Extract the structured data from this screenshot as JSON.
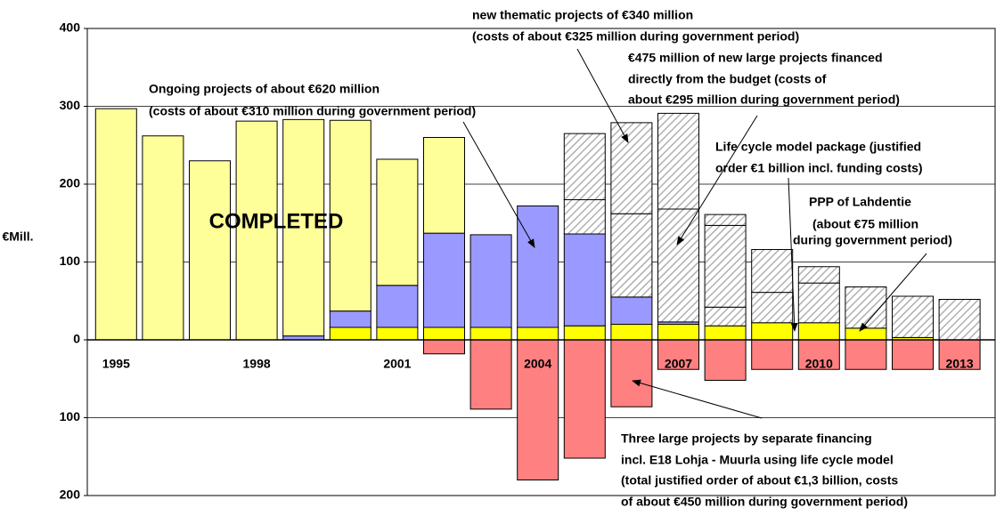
{
  "chart_data": {
    "type": "stacked_bar",
    "y_label": "€Mill.",
    "center_label": "COMPLETED",
    "categories": [
      "1995",
      null,
      null,
      "1998",
      null,
      null,
      "2001",
      null,
      null,
      "2004",
      null,
      null,
      "2007",
      null,
      null,
      "2010",
      null,
      null,
      "2013"
    ],
    "series": [
      {
        "color": "#ffff00",
        "values": [
          0,
          0,
          0,
          0,
          0,
          16,
          16,
          16,
          16,
          16,
          18,
          20,
          20,
          18,
          22,
          22,
          15,
          3,
          0
        ]
      },
      {
        "color": "#9999ff",
        "values": [
          0,
          0,
          0,
          0,
          5,
          21,
          54,
          121,
          119,
          156,
          118,
          35,
          3,
          0,
          0,
          0,
          0,
          0,
          0
        ]
      },
      {
        "color": "#ffff99",
        "values": [
          297,
          262,
          230,
          281,
          278,
          245,
          162,
          123,
          0,
          0,
          0,
          0,
          0,
          0,
          0,
          0,
          0,
          0,
          0
        ]
      },
      {
        "color": "#b0b0b0",
        "pattern": "hatch",
        "values": [
          0,
          0,
          0,
          0,
          0,
          0,
          0,
          0,
          0,
          0,
          44,
          107,
          145,
          24,
          39,
          51,
          53,
          53,
          52
        ]
      },
      {
        "color": "#b0b0b0",
        "pattern": "hatch",
        "values": [
          0,
          0,
          0,
          0,
          0,
          0,
          0,
          0,
          0,
          0,
          85,
          117,
          123,
          105,
          55,
          21,
          0,
          0,
          0
        ]
      },
      {
        "color": "#b0b0b0",
        "pattern": "hatch",
        "values": [
          0,
          0,
          0,
          0,
          0,
          0,
          0,
          0,
          0,
          0,
          0,
          0,
          0,
          14,
          0,
          0,
          0,
          0,
          0
        ]
      },
      {
        "color": "#ff8080",
        "values": [
          0,
          0,
          0,
          0,
          0,
          0,
          0,
          -18,
          -89,
          -180,
          -152,
          -86,
          -38,
          -52,
          -38,
          -38,
          -38,
          -38,
          -38
        ]
      }
    ],
    "ylim": [
      -200,
      400
    ],
    "yticks": [
      {
        "value": -200,
        "label": "200"
      },
      {
        "value": -100,
        "label": "100"
      },
      0,
      100,
      200,
      300,
      400
    ],
    "grid": true,
    "annotations": [
      [
        "new thematic projects of €340 million",
        "(costs of about €325 million during government period)"
      ],
      [
        "Ongoing projects of about €620 million",
        "(costs of about €310 million during government period)"
      ],
      [
        "€475 million of new large projects financed",
        "directly from the budget (costs of",
        "about €295 million during government period)"
      ],
      [
        "Life cycle model package (justified",
        "order €1 billion incl. funding costs)"
      ],
      [
        "PPP of Lahdentie",
        "(about €75 million",
        "during government period)"
      ],
      [
        "Three large projects by separate financing",
        "incl. E18 Lohja - Muurla using life cycle model",
        "(total justified order of about €1,3 billion, costs",
        "of about €450 million during government period)"
      ]
    ]
  }
}
